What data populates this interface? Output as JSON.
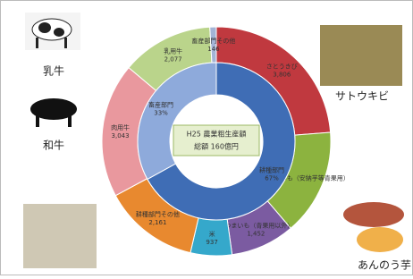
{
  "chart_data": {
    "type": "donut",
    "center_title": "H25 農業粗生産額",
    "center_total": "総額 160億円",
    "inner": {
      "categories": [
        "耕種部門",
        "畜産部門"
      ],
      "values": [
        67,
        33
      ],
      "value_labels": [
        "67%",
        "33%"
      ],
      "colors": [
        "#3f6db5",
        "#8eaadb"
      ]
    },
    "outer": {
      "categories": [
        "さとうきび",
        "さつまいも（安納芋等青果用）",
        "さつまいも（青果用以外）",
        "米",
        "耕種部門その他",
        "肉用牛",
        "乳用牛",
        "畜産部門その他"
      ],
      "values": [
        3806,
        2400,
        1452,
        937,
        2161,
        3043,
        2077,
        146
      ],
      "value_labels": [
        "3,806",
        null,
        "1,452",
        "937",
        "2,161",
        "3,043",
        "2,077",
        "146"
      ],
      "colors": [
        "#c0393f",
        "#8cb33f",
        "#7b5ba1",
        "#35a8cb",
        "#e8892f",
        "#e9989e",
        "#bad48b",
        "#a3b4d6"
      ]
    }
  },
  "photos": [
    {
      "label": "乳牛"
    },
    {
      "label": "和牛"
    },
    {
      "label": "サトウキビ"
    },
    {
      "label": "あんのう芋"
    }
  ]
}
